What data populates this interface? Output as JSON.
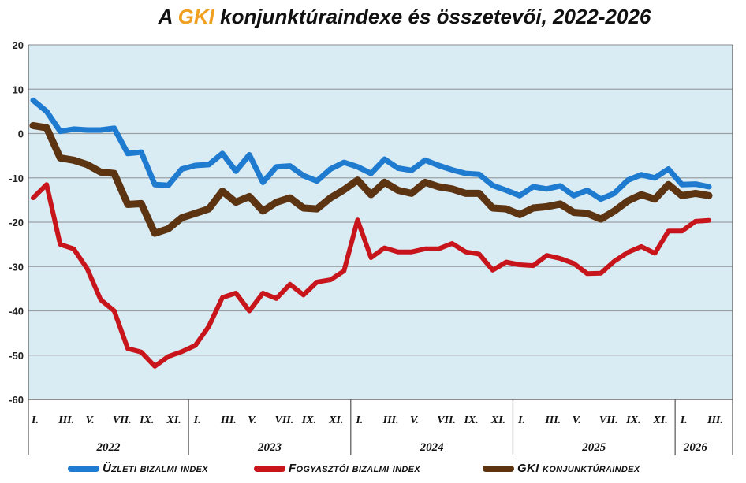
{
  "title": {
    "prefix": "A ",
    "highlight": "GKI",
    "rest": " konjunktúraindexe és összetevői, 2022-2026",
    "highlight_color": "#f0a020"
  },
  "chart_data": {
    "type": "line",
    "ylim": [
      -60,
      20
    ],
    "yticks": [
      20,
      10,
      0,
      -10,
      -20,
      -30,
      -40,
      -50,
      -60
    ],
    "grid": true,
    "legend_position": "bottom",
    "background_color": "#d9ebf3",
    "x_tick_labels": [
      "I.",
      "III.",
      "V.",
      "VII.",
      "IX.",
      "XI.",
      "I.",
      "III.",
      "V.",
      "VII.",
      "IX.",
      "XI.",
      "I.",
      "III.",
      "V.",
      "VII.",
      "IX.",
      "XI.",
      "I.",
      "III.",
      "V.",
      "VII.",
      "IX.",
      "XI.",
      "I.",
      "III."
    ],
    "x_tick_months": [
      0,
      2,
      4,
      6,
      8,
      10,
      12,
      14,
      16,
      18,
      20,
      22,
      24,
      26,
      28,
      30,
      32,
      34,
      36,
      38,
      40,
      42,
      44,
      46,
      48,
      50
    ],
    "years": [
      {
        "label": "2022",
        "start": 0,
        "end": 12
      },
      {
        "label": "2023",
        "start": 12,
        "end": 24
      },
      {
        "label": "2024",
        "start": 24,
        "end": 36
      },
      {
        "label": "2025",
        "start": 36,
        "end": 48
      },
      {
        "label": "2026",
        "start": 48,
        "end": 51
      }
    ],
    "series": [
      {
        "name": "Üzleti bizalmi index",
        "color": "#1e7bcf",
        "values": [
          7.5,
          5,
          0.5,
          1,
          0.8,
          0.8,
          1.2,
          -4.5,
          -4.2,
          -11.5,
          -11.7,
          -8,
          -7.2,
          -7,
          -4.5,
          -8.5,
          -4.8,
          -11,
          -7.5,
          -7.3,
          -9.5,
          -10.7,
          -8,
          -6.5,
          -7.5,
          -9,
          -5.8,
          -7.8,
          -8.3,
          -6,
          -7.2,
          -8.2,
          -9,
          -9.2,
          -11.7,
          -12.8,
          -14,
          -12,
          -12.5,
          -11.8,
          -14,
          -12.8,
          -14.8,
          -13.5,
          -10.5,
          -9.3,
          -10,
          -8,
          -11.5,
          -11.4,
          -12
        ]
      },
      {
        "name": "Fogyasztói bizalmi index",
        "color": "#c8151c",
        "values": [
          -14.5,
          -11.5,
          -25,
          -26,
          -30.5,
          -37.5,
          -40,
          -48.5,
          -49.3,
          -52.5,
          -50.3,
          -49.2,
          -47.8,
          -43.5,
          -37,
          -36,
          -40,
          -36,
          -37.2,
          -34,
          -36.4,
          -33.5,
          -33,
          -31,
          -19.5,
          -28,
          -25.8,
          -26.7,
          -26.7,
          -26,
          -26,
          -24.8,
          -26.7,
          -27.2,
          -30.8,
          -29,
          -29.6,
          -29.8,
          -27.5,
          -28.2,
          -29.3,
          -31.6,
          -31.5,
          -28.8,
          -26.8,
          -25.5,
          -27,
          -22,
          -22,
          -19.8,
          -19.6
        ]
      },
      {
        "name": "GKI konjunktúraindex",
        "color": "#5c3412",
        "values": [
          1.8,
          1.3,
          -5.5,
          -6,
          -7,
          -8.7,
          -9,
          -16,
          -15.8,
          -22.5,
          -21.5,
          -19,
          -18,
          -17,
          -13,
          -15.5,
          -14.2,
          -17.5,
          -15.5,
          -14.5,
          -16.8,
          -17,
          -14.5,
          -12.7,
          -10.5,
          -13.8,
          -11,
          -12.8,
          -13.5,
          -11,
          -12,
          -12.5,
          -13.5,
          -13.5,
          -16.8,
          -17,
          -18.3,
          -16.8,
          -16.5,
          -15.9,
          -17.8,
          -18,
          -19.3,
          -17.5,
          -15.2,
          -13.8,
          -14.8,
          -11.5,
          -14,
          -13.5,
          -14
        ]
      }
    ]
  }
}
